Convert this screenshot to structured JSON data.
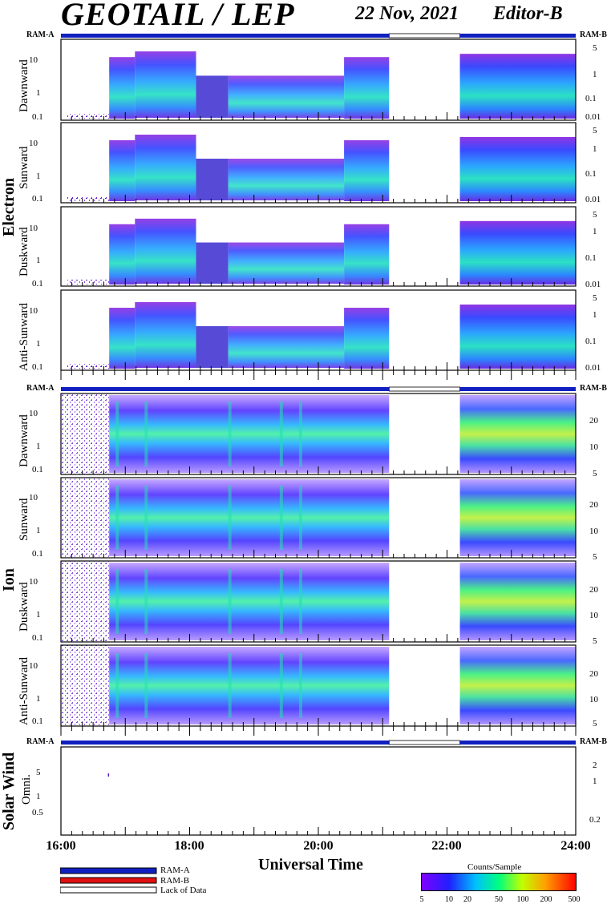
{
  "header": {
    "title": "GEOTAIL / LEP",
    "date": "22 Nov, 2021",
    "editor": "Editor-B"
  },
  "ram": {
    "left": "RAM-A",
    "right": "RAM-B"
  },
  "groups": {
    "electron": "Electron",
    "ion": "Ion",
    "solar": "Solar Wind"
  },
  "panels": {
    "electron": [
      "Dawnward",
      "Sunward",
      "Duskward",
      "Anti-Sunward"
    ],
    "ion": [
      "Dawnward",
      "Sunward",
      "Duskward",
      "Anti-Sunward"
    ],
    "solar": "Omni."
  },
  "colorbar": {
    "title": "Counts/Sample",
    "ticks": [
      "5",
      "10",
      "20",
      "50",
      "100",
      "200",
      "500"
    ]
  },
  "legend": {
    "ram_a": "RAM-A",
    "ram_b": "RAM-B",
    "lack": "Lack of Data",
    "ram_a_color": "#1020c0",
    "ram_b_color": "#e01010"
  },
  "chart_data": {
    "type": "heatmap",
    "title": "GEOTAIL / LEP",
    "xlabel": "Universal Time",
    "x_ticks": [
      "16:00",
      "18:00",
      "20:00",
      "22:00",
      "24:00"
    ],
    "x_range_hours": [
      16,
      24
    ],
    "data_gap_hours": [
      21.1,
      22.2
    ],
    "electron_left_ticks": [
      "10",
      "1",
      "0.1"
    ],
    "electron_right_ticks": [
      "5",
      "1",
      "0.1",
      "0.01"
    ],
    "ion_left_ticks": [
      "10",
      "1",
      "0.1"
    ],
    "ion_right_ticks": [
      "20",
      "10",
      "5"
    ],
    "solar_left_ticks": [
      "5",
      "1",
      "0.5"
    ],
    "solar_right_ticks": [
      "2",
      "1",
      "0.2"
    ],
    "colorscale_range": [
      5,
      500
    ]
  }
}
